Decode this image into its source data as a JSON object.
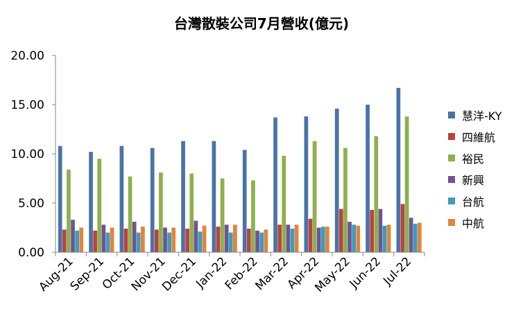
{
  "chart_data": {
    "type": "bar",
    "title": "台灣散裝公司7月營收(億元)",
    "xlabel": "",
    "ylabel": "",
    "ylim": [
      0,
      20
    ],
    "yticks": [
      "0.00",
      "5.00",
      "10.00",
      "15.00",
      "20.00"
    ],
    "grid": false,
    "legend_position": "right",
    "categories": [
      "Aug-21",
      "Sep-21",
      "Oct-21",
      "Nov-21",
      "Dec-21",
      "Jan-22",
      "Feb-22",
      "Mar-22",
      "Apr-22",
      "May-22",
      "Jun-22",
      "Jul-22"
    ],
    "series": [
      {
        "name": "慧洋-KY",
        "color": "#4a73a8",
        "values": [
          10.8,
          10.2,
          10.8,
          10.6,
          11.3,
          11.3,
          10.4,
          13.7,
          13.8,
          14.6,
          15.0,
          16.7
        ]
      },
      {
        "name": "四維航",
        "color": "#b84440",
        "values": [
          2.3,
          2.2,
          2.4,
          2.3,
          2.4,
          2.6,
          2.4,
          2.8,
          3.4,
          4.4,
          4.3,
          4.9
        ]
      },
      {
        "name": "裕民",
        "color": "#8fb04e",
        "values": [
          8.4,
          9.5,
          7.7,
          8.1,
          8.0,
          7.5,
          7.3,
          9.8,
          11.3,
          10.6,
          11.8,
          13.8
        ]
      },
      {
        "name": "新興",
        "color": "#6e5592",
        "values": [
          3.3,
          2.8,
          3.1,
          2.5,
          3.2,
          2.8,
          2.2,
          2.8,
          2.5,
          3.1,
          4.4,
          3.5
        ]
      },
      {
        "name": "台航",
        "color": "#3d9cbd",
        "values": [
          2.2,
          2.0,
          2.0,
          2.0,
          2.1,
          2.0,
          2.0,
          2.4,
          2.6,
          2.8,
          2.7,
          2.9
        ]
      },
      {
        "name": "中航",
        "color": "#e0853a",
        "values": [
          2.5,
          2.5,
          2.6,
          2.5,
          2.7,
          2.8,
          2.3,
          2.8,
          2.6,
          2.7,
          2.8,
          3.0
        ]
      }
    ]
  }
}
